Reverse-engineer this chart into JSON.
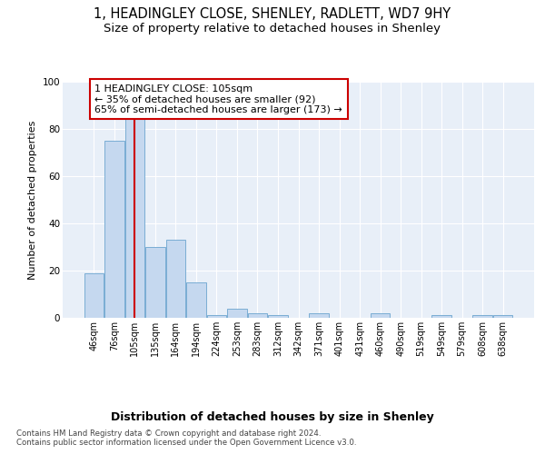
{
  "title1": "1, HEADINGLEY CLOSE, SHENLEY, RADLETT, WD7 9HY",
  "title2": "Size of property relative to detached houses in Shenley",
  "xlabel": "Distribution of detached houses by size in Shenley",
  "ylabel": "Number of detached properties",
  "categories": [
    "46sqm",
    "76sqm",
    "105sqm",
    "135sqm",
    "164sqm",
    "194sqm",
    "224sqm",
    "253sqm",
    "283sqm",
    "312sqm",
    "342sqm",
    "371sqm",
    "401sqm",
    "431sqm",
    "460sqm",
    "490sqm",
    "519sqm",
    "549sqm",
    "579sqm",
    "608sqm",
    "638sqm"
  ],
  "bar_heights": [
    19,
    75,
    85,
    30,
    33,
    15,
    1,
    4,
    2,
    1,
    0,
    2,
    0,
    0,
    2,
    0,
    0,
    1,
    0,
    1,
    1
  ],
  "bar_color": "#c5d8ef",
  "bar_edge_color": "#7aadd4",
  "vline_x_idx": 2,
  "vline_color": "#cc0000",
  "annotation_text": "1 HEADINGLEY CLOSE: 105sqm\n← 35% of detached houses are smaller (92)\n65% of semi-detached houses are larger (173) →",
  "annotation_box_color": "#ffffff",
  "annotation_box_edge": "#cc0000",
  "ylim": [
    0,
    100
  ],
  "yticks": [
    0,
    20,
    40,
    60,
    80,
    100
  ],
  "bg_color": "#e8eff8",
  "footnote": "Contains HM Land Registry data © Crown copyright and database right 2024.\nContains public sector information licensed under the Open Government Licence v3.0.",
  "title1_fontsize": 10.5,
  "title2_fontsize": 9.5,
  "xlabel_fontsize": 9,
  "ylabel_fontsize": 8,
  "tick_fontsize": 7,
  "annot_fontsize": 8
}
